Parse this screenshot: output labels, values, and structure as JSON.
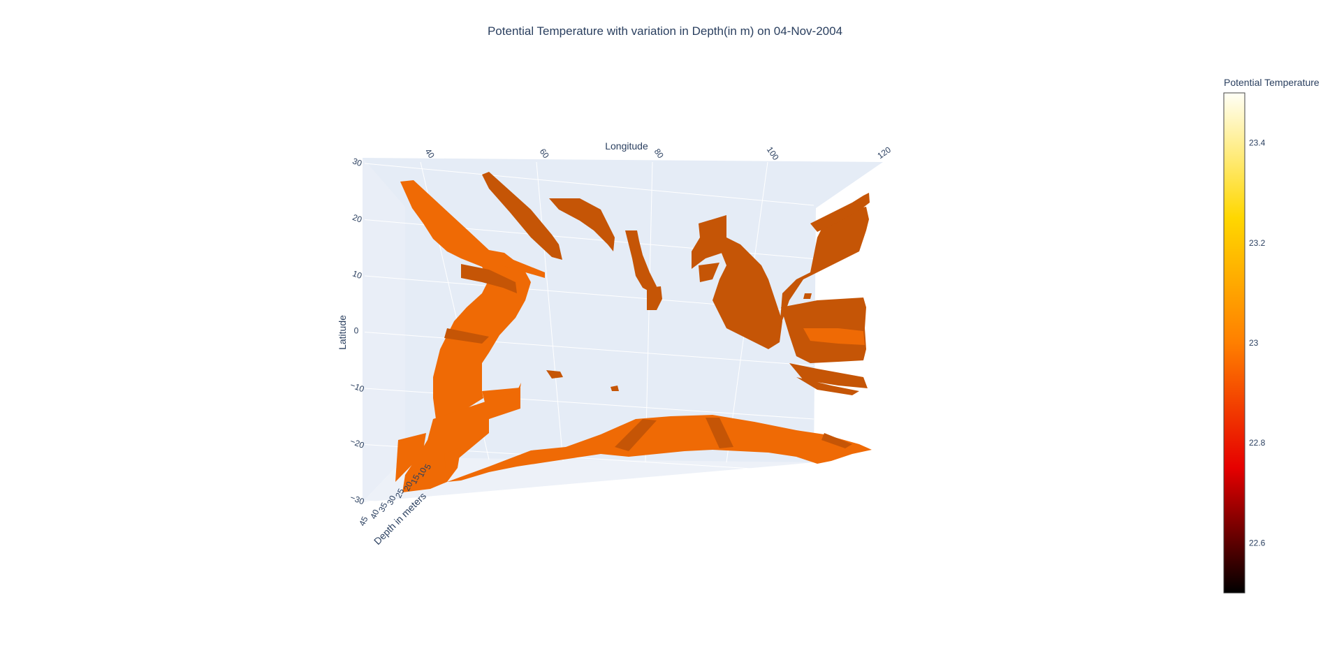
{
  "chart_data": {
    "type": "surface",
    "title": "Potential Temperature with variation in Depth(in m) on 04-Nov-2004",
    "x_axis": {
      "title": "Longitude",
      "ticks": [
        "40",
        "60",
        "80",
        "100",
        "120"
      ],
      "range": [
        30,
        120
      ]
    },
    "y_axis": {
      "title": "Latitude",
      "ticks": [
        "30",
        "20",
        "10",
        "0",
        "−10",
        "−20",
        "−30"
      ],
      "range": [
        -30,
        30
      ]
    },
    "z_axis": {
      "title": "Depth in meters",
      "ticks": [
        "45",
        "40",
        "35",
        "30",
        "25",
        "20",
        "15",
        "10",
        "5"
      ],
      "range": [
        5,
        45
      ]
    },
    "colorbar": {
      "title": "Potential Temperature",
      "ticks": [
        "23.4",
        "23.2",
        "23",
        "22.8",
        "22.6"
      ],
      "range": [
        22.5,
        23.5
      ],
      "colorscale": [
        "#000000",
        "#e60000",
        "#ff7f00",
        "#ffd700",
        "#fffff6"
      ]
    },
    "surface_color": "#ef6a05",
    "surface_shade": "#c55506",
    "grid": true,
    "background": "#e5ecf6"
  }
}
